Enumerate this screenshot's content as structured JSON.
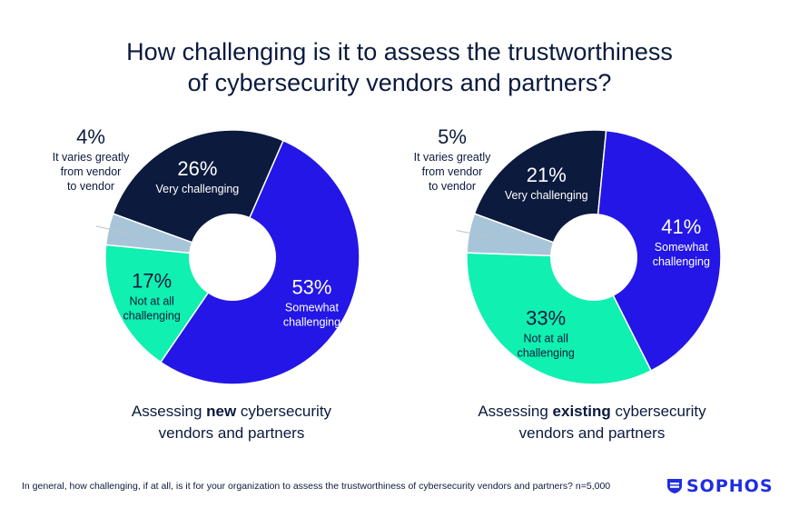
{
  "title": {
    "line1": "How challenging is it to assess the trustworthiness",
    "line2": "of cybersecurity vendors and partners?"
  },
  "chart_data": [
    {
      "type": "pie",
      "donut": true,
      "caption": {
        "prefix": "Assessing ",
        "bold": "new",
        "suffix": " cybersecurity",
        "line2": "vendors and partners"
      },
      "slices": [
        {
          "label": [
            "Very challenging"
          ],
          "value": 26,
          "display": "26%",
          "color": "#0b1a3d",
          "text_color": "#ffffff"
        },
        {
          "label": [
            "Somewhat",
            "challenging"
          ],
          "value": 53,
          "display": "53%",
          "color": "#2316e6",
          "text_color": "#ffffff"
        },
        {
          "label": [
            "Not at all",
            "challenging"
          ],
          "value": 17,
          "display": "17%",
          "color": "#10f0b0",
          "text_color": "#0b1a3d"
        },
        {
          "label": [
            "It varies greatly",
            "from vendor",
            "to vendor"
          ],
          "value": 4,
          "display": "4%",
          "color": "#a8c4d8",
          "text_color": "#0b1a3d"
        }
      ]
    },
    {
      "type": "pie",
      "donut": true,
      "caption": {
        "prefix": "Assessing ",
        "bold": "existing",
        "suffix": " cybersecurity",
        "line2": "vendors and partners"
      },
      "slices": [
        {
          "label": [
            "Very challenging"
          ],
          "value": 21,
          "display": "21%",
          "color": "#0b1a3d",
          "text_color": "#ffffff"
        },
        {
          "label": [
            "Somewhat",
            "challenging"
          ],
          "value": 41,
          "display": "41%",
          "color": "#2316e6",
          "text_color": "#ffffff"
        },
        {
          "label": [
            "Not at all",
            "challenging"
          ],
          "value": 33,
          "display": "33%",
          "color": "#10f0b0",
          "text_color": "#0b1a3d"
        },
        {
          "label": [
            "It varies greatly",
            "from vendor",
            "to vendor"
          ],
          "value": 5,
          "display": "5%",
          "color": "#a8c4d8",
          "text_color": "#0b1a3d"
        }
      ]
    }
  ],
  "footer": "In general, how challenging, if at all, is it for your organization to assess the trustworthiness of cybersecurity vendors and partners? n=5,000",
  "logo": {
    "text": "SOPHOS",
    "icon": "sophos-shield-icon",
    "color": "#1f2de0"
  }
}
